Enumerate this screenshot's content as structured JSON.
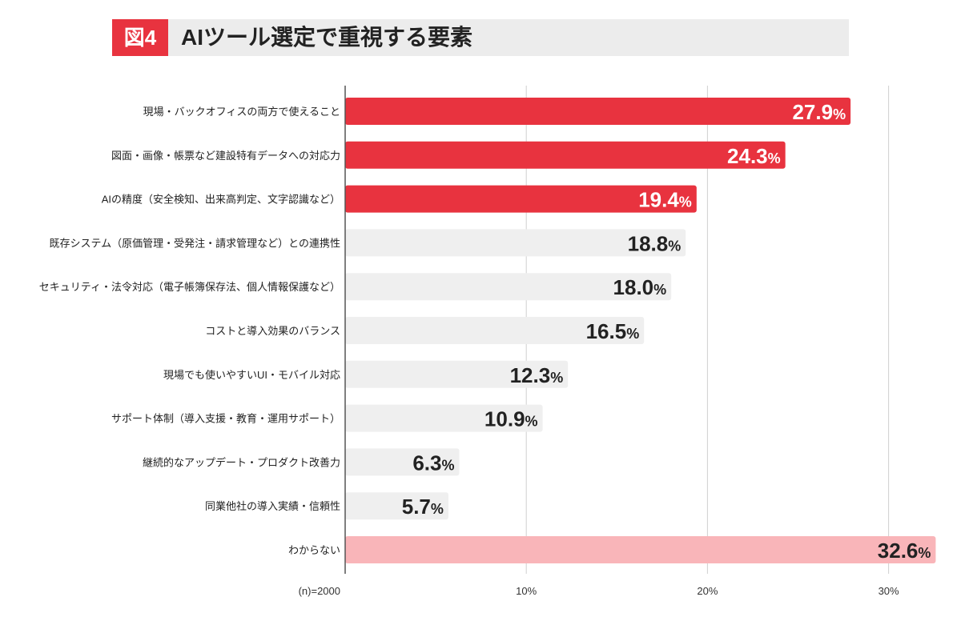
{
  "header": {
    "figure_label": "図4",
    "title": "AIツール選定で重視する要素"
  },
  "chart_data": {
    "type": "bar",
    "orientation": "horizontal",
    "title": "AIツール選定で重視する要素",
    "categories": [
      "現場・バックオフィスの両方で使えること",
      "図面・画像・帳票など建設特有データへの対応力",
      "AIの精度（安全検知、出来高判定、文字認識など）",
      "既存システム（原価管理・受発注・請求管理など）との連携性",
      "セキュリティ・法令対応（電子帳簿保存法、個人情報保護など）",
      "コストと導入効果のバランス",
      "現場でも使いやすいUI・モバイル対応",
      "サポート体制（導入支援・教育・運用サポート）",
      "継続的なアップデート・プロダクト改善力",
      "同業他社の導入実績・信頼性",
      "わからない"
    ],
    "values": [
      27.9,
      24.3,
      19.4,
      18.8,
      18.0,
      16.5,
      12.3,
      10.9,
      6.3,
      5.7,
      32.6
    ],
    "value_labels": [
      "27.9",
      "24.3",
      "19.4",
      "18.8",
      "18.0",
      "16.5",
      "12.3",
      "10.9",
      "6.3",
      "5.7",
      "32.6"
    ],
    "unit": "%",
    "bar_colors": [
      "#e8333f",
      "#e8333f",
      "#e8333f",
      "#efefef",
      "#efefef",
      "#efefef",
      "#efefef",
      "#efefef",
      "#efefef",
      "#efefef",
      "#f9b5b9"
    ],
    "xlim": [
      0,
      32.6
    ],
    "xticks": [
      10,
      20,
      30
    ],
    "xtick_labels": [
      "10%",
      "20%",
      "30%"
    ],
    "sample_note": "(n)=2000",
    "grid": true,
    "accent_color": "#e8333f"
  }
}
